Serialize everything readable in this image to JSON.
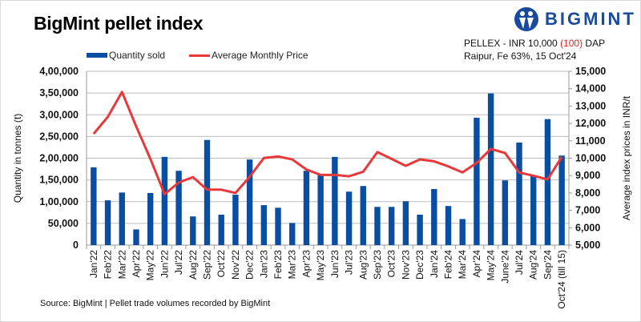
{
  "header": {
    "title": "BigMint pellet index",
    "logo_text": "BIGMINT",
    "info_line1_a": "PELLEX - INR 10,000 ",
    "info_line1_b": "(100)",
    "info_line1_c": " DAP",
    "info_line2": "Raipur, Fe 63%, 15 Oct'24"
  },
  "footer": {
    "source": "Source: BigMint | Pellet trade volumes recorded by BigMint"
  },
  "chart_data": {
    "type": "bar+line",
    "title": "BigMint pellet index",
    "categories": [
      "Jan'22",
      "Feb'22",
      "Mar'22",
      "Apr'22",
      "May'22",
      "Jun'22",
      "Jul'22",
      "Aug'22",
      "Sep'22",
      "Oct'22",
      "Nov'22",
      "Dec'22",
      "Jan'23",
      "Feb'23",
      "Mar'23",
      "Apr'23",
      "May'23",
      "Jun'23",
      "Jul'23",
      "Aug'23",
      "Sep'23",
      "Oct'23",
      "Nov'23",
      "Dec'23",
      "Jan'24",
      "Feb'24",
      "Mar'24",
      "Apr'24",
      "May'24",
      "June'24",
      "Jul'24",
      "Aug'24",
      "Sep'24",
      "Oct'24 (till 15)"
    ],
    "series": [
      {
        "name": "Quantity sold",
        "type": "bar",
        "axis": "left",
        "color": "#0a4ea2",
        "values": [
          179000,
          103000,
          121000,
          36000,
          120000,
          203000,
          171000,
          66000,
          242000,
          70000,
          116000,
          197000,
          92000,
          86000,
          51000,
          171000,
          164000,
          203000,
          123000,
          136000,
          88000,
          88000,
          101000,
          70000,
          129000,
          90000,
          60000,
          293000,
          349000,
          149000,
          236000,
          161000,
          290000,
          206000
        ]
      },
      {
        "name": "Average Monthly Price",
        "type": "line",
        "axis": "right",
        "color": "#e8383a",
        "values": [
          11400,
          12380,
          13810,
          11830,
          9960,
          7930,
          8600,
          8910,
          8190,
          8190,
          8000,
          8930,
          10010,
          10100,
          9930,
          9350,
          9040,
          9040,
          8960,
          9220,
          10350,
          9960,
          9560,
          9930,
          9820,
          9530,
          9180,
          9730,
          10530,
          10300,
          9180,
          8990,
          8780,
          10070
        ]
      }
    ],
    "ylabel_left": "Quantity in tonnes  (t)",
    "ylabel_right": "Average index prices in INR/t",
    "ylim_left": [
      0,
      400000
    ],
    "ylim_right": [
      5000,
      15000
    ],
    "yticks_left": [
      "0",
      "50,000",
      "1,00,000",
      "1,50,000",
      "2,00,000",
      "2,50,000",
      "3,00,000",
      "3,50,000",
      "4,00,000"
    ],
    "yticks_right": [
      "5,000",
      "6,000",
      "7,000",
      "8,000",
      "9,000",
      "10,000",
      "11,000",
      "12,000",
      "13,000",
      "14,000",
      "15,000"
    ],
    "grid": true,
    "legend_position": "top-left"
  }
}
